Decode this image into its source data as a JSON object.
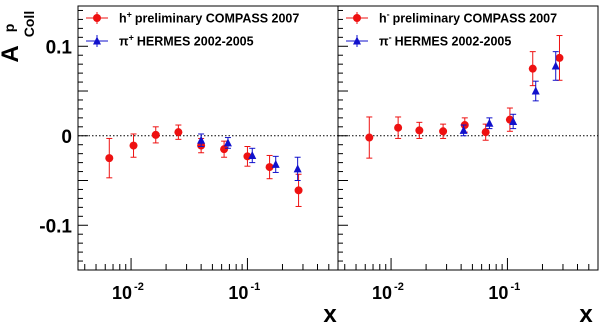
{
  "figure": {
    "ylabel_main": "A",
    "ylabel_sub": "Coll",
    "ylabel_sup": "p",
    "xlabel": "x",
    "colors": {
      "red": "#ee1111",
      "blue": "#1111cc",
      "axis": "#000000"
    }
  },
  "chart_data": [
    {
      "type": "scatter",
      "panel": "left",
      "xscale": "log",
      "xlim": [
        0.0035,
        0.6
      ],
      "ylim": [
        -0.15,
        0.145
      ],
      "xticklabels": [
        {
          "value": 0.01,
          "base": "10",
          "exp": "-2"
        },
        {
          "value": 0.1,
          "base": "10",
          "exp": "-1"
        }
      ],
      "yticklabels": [
        {
          "value": 0.1,
          "label": "0.1"
        },
        {
          "value": 0,
          "label": "0"
        },
        {
          "value": -0.1,
          "label": "-0.1"
        }
      ],
      "xlabel": "x",
      "ylabel": "A^p_Coll",
      "zero_line": "dotted",
      "legend_position": "top-left",
      "series": [
        {
          "name": "preliminary COMPASS 2007",
          "symbol": "h",
          "charge": "+",
          "marker": "circle",
          "color": "#ee1111",
          "x": [
            0.0065,
            0.0105,
            0.0163,
            0.0255,
            0.04,
            0.063,
            0.1,
            0.155,
            0.275
          ],
          "y": [
            -0.025,
            -0.011,
            0.001,
            0.004,
            -0.011,
            -0.015,
            -0.023,
            -0.035,
            -0.061
          ],
          "yerr": [
            0.022,
            0.013,
            0.009,
            0.008,
            0.008,
            0.009,
            0.011,
            0.013,
            0.018
          ]
        },
        {
          "name": "HERMES 2002-2005",
          "symbol": "π",
          "charge": "+",
          "marker": "triangle",
          "color": "#1111cc",
          "x": [
            0.04,
            0.068,
            0.11,
            0.175,
            0.27
          ],
          "y": [
            -0.005,
            -0.008,
            -0.022,
            -0.032,
            -0.037
          ],
          "yerr": [
            0.007,
            0.006,
            0.008,
            0.009,
            0.013
          ]
        }
      ]
    },
    {
      "type": "scatter",
      "panel": "right",
      "xscale": "log",
      "xlim": [
        0.0035,
        0.6
      ],
      "ylim": [
        -0.15,
        0.145
      ],
      "xticklabels": [
        {
          "value": 0.01,
          "base": "10",
          "exp": "-2"
        },
        {
          "value": 0.1,
          "base": "10",
          "exp": "-1"
        }
      ],
      "yticklabels": [],
      "xlabel": "x",
      "zero_line": "dotted",
      "legend_position": "top-left",
      "series": [
        {
          "name": "preliminary COMPASS 2007",
          "symbol": "h",
          "charge": "-",
          "marker": "circle",
          "color": "#ee1111",
          "x": [
            0.0065,
            0.0115,
            0.0175,
            0.028,
            0.043,
            0.065,
            0.105,
            0.165,
            0.28
          ],
          "y": [
            -0.002,
            0.009,
            0.006,
            0.005,
            0.012,
            0.004,
            0.018,
            0.075,
            0.087
          ],
          "yerr": [
            0.023,
            0.012,
            0.009,
            0.008,
            0.008,
            0.009,
            0.013,
            0.019,
            0.025
          ]
        },
        {
          "name": "HERMES 2002-2005",
          "symbol": "π",
          "charge": "-",
          "marker": "triangle",
          "color": "#1111cc",
          "x": [
            0.042,
            0.07,
            0.112,
            0.175,
            0.26
          ],
          "y": [
            0.006,
            0.014,
            0.016,
            0.05,
            0.078
          ],
          "yerr": [
            0.006,
            0.006,
            0.008,
            0.011,
            0.016
          ]
        }
      ]
    }
  ]
}
